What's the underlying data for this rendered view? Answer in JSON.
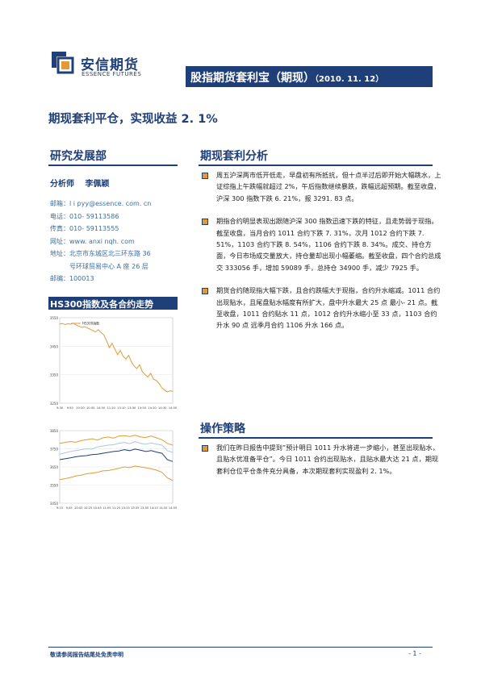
{
  "header": {
    "logo_cn": "安信期货",
    "logo_en": "ESSENCE FUTURES",
    "title_main": "股指期货套利宝（期现）",
    "title_date": "（2010. 11. 12）"
  },
  "subtitle": "期现套利平仓，实现收益 2. 1%",
  "left": {
    "dept_title": "研究发展部",
    "analyst": "分析师　 李佩颖",
    "contact": [
      {
        "label": "邮箱：",
        "value": "l i pyy@essence. com. cn"
      },
      {
        "label": "电话：",
        "value": "010- 59113586"
      },
      {
        "label": "传真：",
        "value": "010- 59113555"
      },
      {
        "label": "网址：",
        "value": "www. anxi nqh. com"
      },
      {
        "label": "地址：",
        "value": "北京市东城区北三环东路 36"
      },
      {
        "label": "",
        "value": "号环球贸易中心 A 座 26 层"
      },
      {
        "label": "邮编：",
        "value": "100013"
      }
    ],
    "chart_section_title": "HS300指数及各合约走势"
  },
  "analysis": {
    "title": "期现套利分析",
    "paragraphs": [
      "周五沪深两市低开低走，早盘初有所抵抗，但十点半过后即开始大幅跳水，上证综指上午跌幅就超过 2%，午后指数继续暴跌，跌幅远超预期。截至收盘，沪深 300 指数下跌 6. 21%，报 3291. 83 点。",
      "期指合约明显表现出跟随沪深 300 指数迅速下跌的特征，且走势弱于现指。截至收盘，当月合约 1011 合约下跌 7. 31%，次月 1012 合约下跌 7. 51%，1103 合约下跌 8. 54%，1106 合约下跌 8. 34%。成交、持仓方面，今日市场成交量放大，持仓量却出现小幅萎缩。截至收盘，四个合约总成交 333056 手，增加 59089 手，总持仓 34900 手，减少 7925 手。",
      "期货合约随现指大幅下跌，且合约跌幅大于现指，合约升水缩减。1011 合约出现贴水，且尾盘贴水幅度有所扩大，盘中升水最大 25 点 最小- 21 点。截至收盘，1011 合约贴水 11 点，1012 合约升水缩小至 33 点，1103 合约升水 90 点 远季月合约 1106 升水 166 点。"
    ]
  },
  "strategy": {
    "title": "操作策略",
    "paragraphs": [
      "我们在昨日报告中提到”预计明日 1011 升水将进一步缩小，甚至出现贴水，且贴水优准备平仓”。今日 1011 合约出现贴水，且贴水最大达 21 点，期现套利仓位平仓条件充分具备，本次期现套利实现盈利 2. 1%。"
    ]
  },
  "chart_data": [
    {
      "type": "line",
      "legend": [
        "HS300指数"
      ],
      "y_ticks": [
        "3550",
        "3450",
        "3350",
        "3250"
      ],
      "ylim": [
        3250,
        3550
      ],
      "x_ticks": [
        "9:30",
        "9:50",
        "10:10",
        "10:30",
        "10:50",
        "11:10",
        "13:10",
        "13:30",
        "13:50",
        "14:10",
        "14:30",
        "14:50"
      ],
      "series": [
        {
          "name": "HS300指数",
          "color": "#e39a33",
          "values": [
            3528,
            3530,
            3526,
            3529,
            3527,
            3531,
            3524,
            3520,
            3516,
            3519,
            3514,
            3510,
            3505,
            3500,
            3508,
            3498,
            3490,
            3470,
            3445,
            3460,
            3440,
            3420,
            3435,
            3415,
            3405,
            3418,
            3395,
            3380,
            3372,
            3385,
            3360,
            3350,
            3342,
            3355,
            3335,
            3330,
            3320,
            3305,
            3296,
            3290,
            3293,
            3292
          ]
        }
      ]
    },
    {
      "type": "line",
      "y_ticks": [
        "3850",
        "3750",
        "3650",
        "3550",
        "3450"
      ],
      "ylim": [
        3450,
        3850
      ],
      "x_ticks": [
        "9:15",
        "9:45",
        "10:05",
        "10:25",
        "10:45",
        "11:05",
        "11:25",
        "13:15",
        "13:35",
        "13:55",
        "14:15",
        "14:35",
        "14:55"
      ],
      "series": [
        {
          "color": "#e39a33",
          "values": [
            3780,
            3785,
            3790,
            3786,
            3795,
            3800,
            3805,
            3798,
            3810,
            3815,
            3808,
            3820,
            3822,
            3818,
            3825,
            3815,
            3812,
            3820,
            3810,
            3800,
            3780,
            3770
          ]
        },
        {
          "color": "#a9c7e8",
          "values": [
            3720,
            3728,
            3735,
            3740,
            3745,
            3750,
            3748,
            3760,
            3765,
            3770,
            3772,
            3780,
            3785,
            3778,
            3790,
            3780,
            3775,
            3782,
            3776,
            3770,
            3740,
            3730
          ]
        },
        {
          "color": "#1f3f78",
          "values": [
            3690,
            3695,
            3700,
            3706,
            3710,
            3712,
            3718,
            3720,
            3725,
            3730,
            3735,
            3738,
            3745,
            3740,
            3748,
            3742,
            3735,
            3740,
            3732,
            3725,
            3690,
            3680
          ]
        },
        {
          "color": "#e39a33",
          "values": [
            3580,
            3585,
            3592,
            3600,
            3605,
            3612,
            3616,
            3620,
            3628,
            3630,
            3636,
            3642,
            3650,
            3646,
            3655,
            3650,
            3645,
            3640,
            3632,
            3620,
            3590,
            3575
          ]
        }
      ]
    }
  ],
  "footer": {
    "disclaimer": "敬请参阅报告结尾处免责申明",
    "page": "- 1 -"
  }
}
